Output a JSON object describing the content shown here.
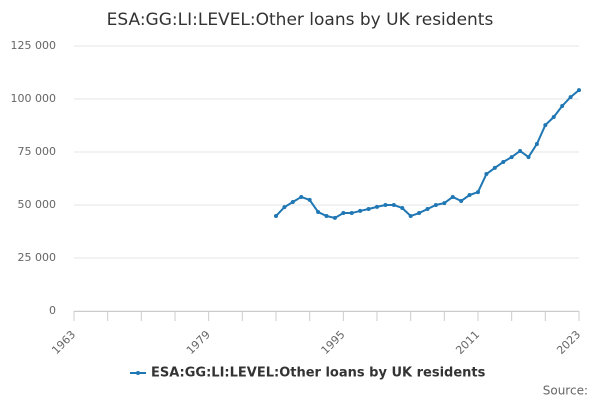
{
  "chart_data": {
    "type": "line",
    "title": "ESA:GG:LI:LEVEL:Other loans by UK residents",
    "x": [
      1987,
      1988,
      1989,
      1990,
      1991,
      1992,
      1993,
      1994,
      1995,
      1996,
      1997,
      1998,
      1999,
      2000,
      2001,
      2002,
      2003,
      2004,
      2005,
      2006,
      2007,
      2008,
      2009,
      2010,
      2011,
      2012,
      2013,
      2014,
      2015,
      2016,
      2017,
      2018,
      2019,
      2020,
      2021,
      2022,
      2023
    ],
    "series": [
      {
        "name": "ESA:GG:LI:LEVEL:Other loans by UK residents",
        "color": "#1f77b4",
        "values": [
          44800,
          49000,
          51400,
          53800,
          52400,
          46700,
          44800,
          43900,
          46200,
          46200,
          47200,
          48100,
          49100,
          50000,
          50000,
          48600,
          44800,
          46200,
          48100,
          50000,
          50900,
          53800,
          51900,
          54700,
          56100,
          64600,
          67500,
          70300,
          72600,
          75500,
          72600,
          78800,
          87700,
          91500,
          96700,
          100900,
          104200
        ]
      }
    ],
    "xlim": [
      1963,
      2023
    ],
    "xticks": [
      1963,
      1979,
      1995,
      2011,
      2023
    ],
    "xminor_ticks": [
      1963,
      1967,
      1971,
      1975,
      1979,
      1983,
      1987,
      1991,
      1995,
      1999,
      2003,
      2007,
      2011,
      2015,
      2019,
      2023
    ],
    "ylim": [
      0,
      125000
    ],
    "yticks": [
      0,
      {
        "value": 25000,
        "label": "25 000"
      },
      {
        "value": 50000,
        "label": "50 000"
      },
      {
        "value": 75000,
        "label": "75 000"
      },
      {
        "value": 100000,
        "label": "100 000"
      },
      {
        "value": 125000,
        "label": "125 000"
      }
    ],
    "grid": true,
    "legend": "bottom",
    "source": "Source:"
  }
}
